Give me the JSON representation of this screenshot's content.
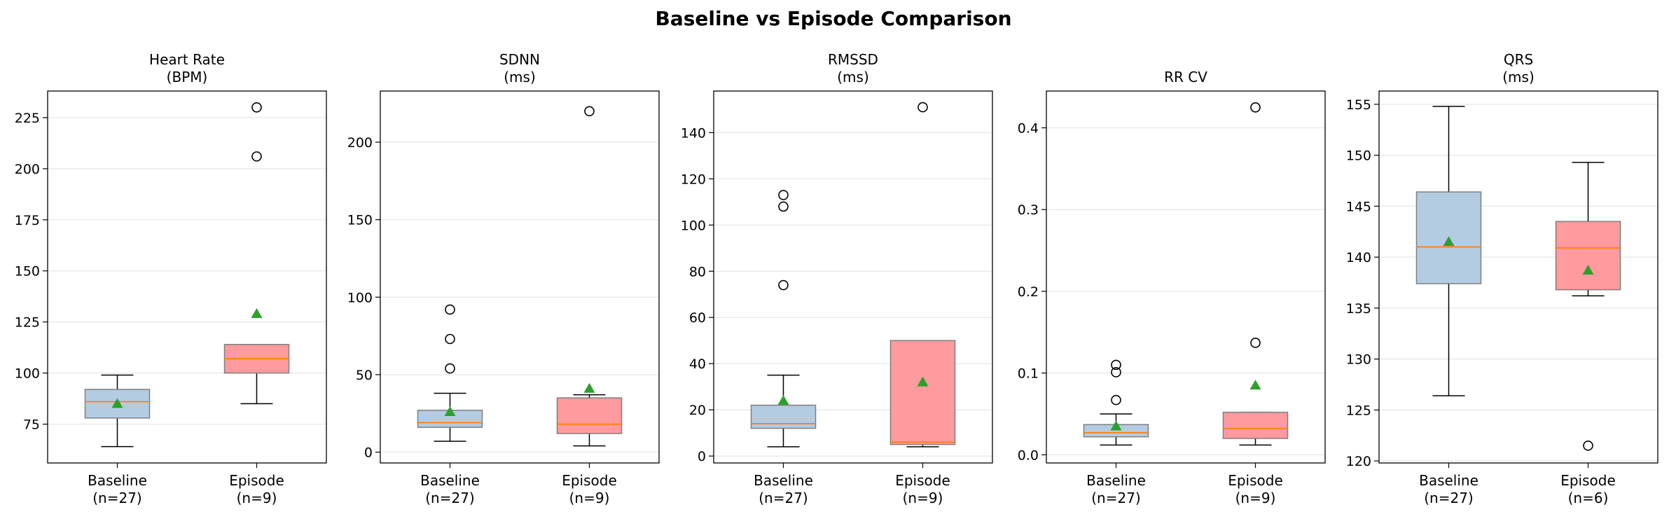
{
  "figure": {
    "suptitle": "Baseline vs Episode Comparison"
  },
  "style": {
    "baseline_fill": "#b4cce2",
    "episode_fill": "#ff9a9e",
    "box_edge": "#7f7f7f",
    "median_color": "#ff7f0e",
    "mean_color": "#2ca02c",
    "grid_color": "#e6e6e6"
  },
  "chart_data": [
    {
      "type": "box",
      "title": "Heart Rate",
      "unit": "(BPM)",
      "ylim": [
        56,
        238
      ],
      "yticks": [
        75,
        100,
        125,
        150,
        175,
        200,
        225
      ],
      "grid": true,
      "categories": [
        {
          "label": "Baseline",
          "n_label": "(n=27)",
          "whisker_low": 64,
          "q1": 78,
          "median": 86,
          "q3": 92,
          "whisker_high": 99,
          "mean": 85,
          "outliers": []
        },
        {
          "label": "Episode",
          "n_label": "(n=9)",
          "whisker_low": 85,
          "q1": 100,
          "median": 107,
          "q3": 114,
          "whisker_high": 114,
          "mean": 129,
          "outliers": [
            230,
            206
          ]
        }
      ]
    },
    {
      "type": "box",
      "title": "SDNN",
      "unit": "(ms)",
      "ylim": [
        -7,
        233
      ],
      "yticks": [
        0,
        50,
        100,
        150,
        200
      ],
      "grid": true,
      "categories": [
        {
          "label": "Baseline",
          "n_label": "(n=27)",
          "whisker_low": 7,
          "q1": 16,
          "median": 19,
          "q3": 27,
          "whisker_high": 38,
          "mean": 26,
          "outliers": [
            92,
            73,
            54
          ]
        },
        {
          "label": "Episode",
          "n_label": "(n=9)",
          "whisker_low": 4,
          "q1": 12,
          "median": 18,
          "q3": 35,
          "whisker_high": 37,
          "mean": 41,
          "outliers": [
            220
          ]
        }
      ]
    },
    {
      "type": "box",
      "title": "RMSSD",
      "unit": "(ms)",
      "ylim": [
        -3,
        158
      ],
      "yticks": [
        0,
        20,
        40,
        60,
        80,
        100,
        120,
        140
      ],
      "grid": true,
      "categories": [
        {
          "label": "Baseline",
          "n_label": "(n=27)",
          "whisker_low": 4,
          "q1": 12,
          "median": 14,
          "q3": 22,
          "whisker_high": 35,
          "mean": 24,
          "outliers": [
            113,
            108,
            74
          ]
        },
        {
          "label": "Episode",
          "n_label": "(n=9)",
          "whisker_low": 4,
          "q1": 5,
          "median": 6,
          "q3": 50,
          "whisker_high": 50,
          "mean": 32,
          "outliers": [
            151
          ]
        }
      ]
    },
    {
      "type": "box",
      "title": "RR CV",
      "unit": "",
      "ylim": [
        -0.01,
        0.445
      ],
      "yticks": [
        0.0,
        0.1,
        0.2,
        0.3,
        0.4
      ],
      "grid": true,
      "categories": [
        {
          "label": "Baseline",
          "n_label": "(n=27)",
          "whisker_low": 0.012,
          "q1": 0.022,
          "median": 0.027,
          "q3": 0.037,
          "whisker_high": 0.05,
          "mean": 0.035,
          "outliers": [
            0.11,
            0.101,
            0.067
          ]
        },
        {
          "label": "Episode",
          "n_label": "(n=9)",
          "whisker_low": 0.012,
          "q1": 0.02,
          "median": 0.032,
          "q3": 0.052,
          "whisker_high": 0.052,
          "mean": 0.085,
          "outliers": [
            0.425,
            0.137
          ]
        }
      ]
    },
    {
      "type": "box",
      "title": "QRS",
      "unit": "(ms)",
      "ylim": [
        119.8,
        156.3
      ],
      "yticks": [
        120,
        125,
        130,
        135,
        140,
        145,
        150,
        155
      ],
      "grid": true,
      "categories": [
        {
          "label": "Baseline",
          "n_label": "(n=27)",
          "whisker_low": 126.4,
          "q1": 137.4,
          "median": 141.0,
          "q3": 146.4,
          "whisker_high": 154.8,
          "mean": 141.5,
          "outliers": []
        },
        {
          "label": "Episode",
          "n_label": "(n=6)",
          "whisker_low": 136.2,
          "q1": 136.8,
          "median": 140.9,
          "q3": 143.5,
          "whisker_high": 149.3,
          "mean": 138.7,
          "outliers": [
            121.5
          ]
        }
      ]
    }
  ]
}
